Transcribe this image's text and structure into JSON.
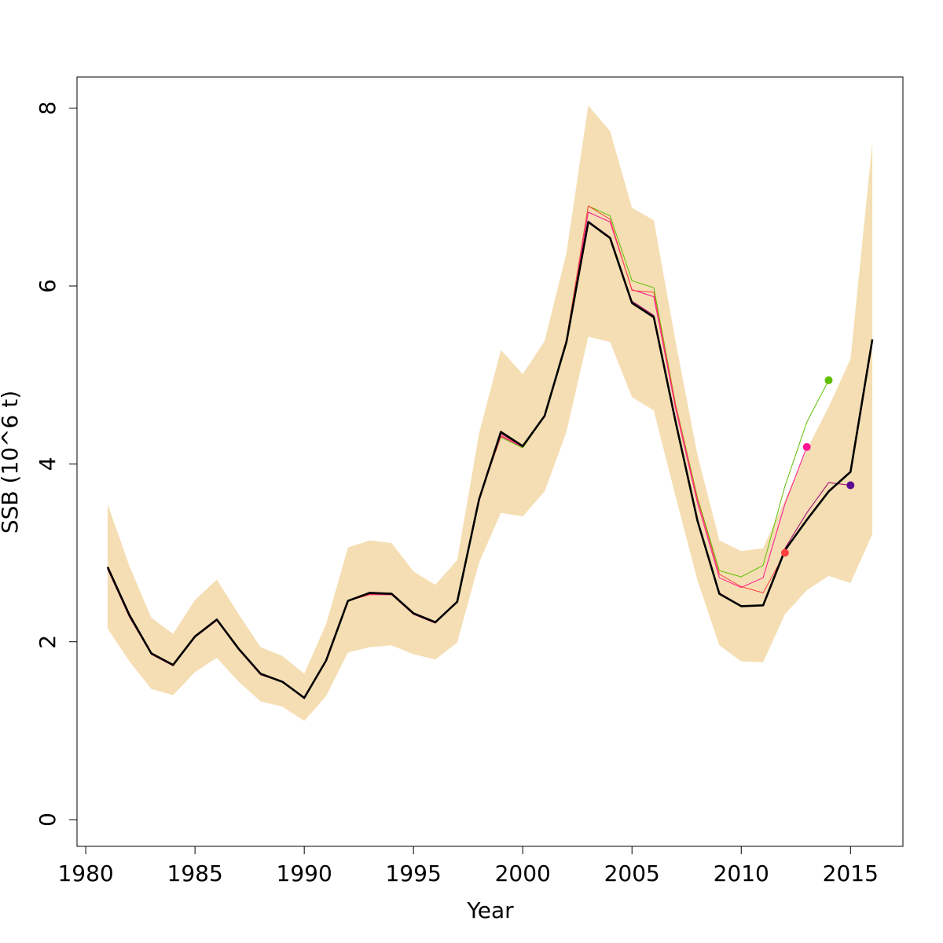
{
  "chart_data": {
    "type": "line",
    "title": "",
    "xlabel": "Year",
    "ylabel": "SSB (10^6 t)",
    "xlim": [
      1979.6,
      2017.4
    ],
    "ylim": [
      -0.3,
      8.35
    ],
    "xticks": [
      1980,
      1985,
      1990,
      1995,
      2000,
      2005,
      2010,
      2015
    ],
    "yticks": [
      0,
      2,
      4,
      6,
      8
    ],
    "grid": false,
    "legend": "none",
    "band": {
      "color": "#F5DEB3",
      "x": [
        1981,
        1982,
        1983,
        1984,
        1985,
        1986,
        1987,
        1988,
        1989,
        1990,
        1991,
        1992,
        1993,
        1994,
        1995,
        1996,
        1997,
        1998,
        1999,
        2000,
        2001,
        2002,
        2003,
        2004,
        2005,
        2006,
        2007,
        2008,
        2009,
        2010,
        2011,
        2012,
        2013,
        2014,
        2015,
        2016
      ],
      "lower": [
        2.15,
        1.78,
        1.47,
        1.4,
        1.66,
        1.82,
        1.55,
        1.33,
        1.27,
        1.11,
        1.39,
        1.88,
        1.94,
        1.96,
        1.86,
        1.8,
        1.99,
        2.89,
        3.45,
        3.41,
        3.69,
        4.36,
        5.43,
        5.37,
        4.75,
        4.6,
        3.63,
        2.69,
        1.96,
        1.78,
        1.77,
        2.31,
        2.58,
        2.74,
        2.66,
        3.21
      ],
      "upper": [
        3.55,
        2.85,
        2.27,
        2.09,
        2.47,
        2.7,
        2.31,
        1.94,
        1.84,
        1.64,
        2.2,
        3.06,
        3.14,
        3.11,
        2.79,
        2.64,
        2.92,
        4.34,
        5.28,
        5.01,
        5.38,
        6.37,
        8.03,
        7.74,
        6.88,
        6.74,
        5.37,
        4.1,
        3.14,
        3.02,
        3.05,
        3.6,
        4.16,
        4.64,
        5.18,
        7.61
      ]
    },
    "series": [
      {
        "color": "#5FBF00",
        "width": 1,
        "x": [
          1981,
          1982,
          1983,
          1984,
          1985,
          1986,
          1987,
          1988,
          1989,
          1990,
          1991,
          1992,
          1993,
          1994,
          1995,
          1996,
          1997,
          1998,
          1999,
          2000,
          2001,
          2002,
          2003,
          2004,
          2005,
          2006,
          2007,
          2008,
          2009,
          2010,
          2011,
          2012,
          2013,
          2014
        ],
        "values": [
          2.82,
          2.28,
          1.86,
          1.73,
          2.05,
          2.24,
          1.91,
          1.63,
          1.55,
          1.36,
          1.79,
          2.46,
          2.54,
          2.53,
          2.31,
          2.21,
          2.45,
          3.62,
          4.3,
          4.18,
          4.53,
          5.4,
          6.9,
          6.79,
          6.06,
          5.98,
          4.67,
          3.62,
          2.8,
          2.73,
          2.86,
          3.75,
          4.47,
          4.94
        ],
        "end_marker": true
      },
      {
        "color": "#FF1493",
        "width": 1,
        "x": [
          1981,
          1982,
          1983,
          1984,
          1985,
          1986,
          1987,
          1988,
          1989,
          1990,
          1991,
          1992,
          1993,
          1994,
          1995,
          1996,
          1997,
          1998,
          1999,
          2000,
          2001,
          2002,
          2003,
          2004,
          2005,
          2006,
          2007,
          2008,
          2009,
          2010,
          2011,
          2012,
          2013
        ],
        "values": [
          2.82,
          2.28,
          1.86,
          1.73,
          2.05,
          2.24,
          1.91,
          1.63,
          1.55,
          1.36,
          1.79,
          2.46,
          2.53,
          2.53,
          2.31,
          2.21,
          2.45,
          3.61,
          4.31,
          4.19,
          4.53,
          5.39,
          6.83,
          6.72,
          5.96,
          5.88,
          4.62,
          3.56,
          2.72,
          2.61,
          2.72,
          3.55,
          4.19
        ],
        "end_marker": true
      },
      {
        "color": "#FF4040",
        "width": 1,
        "x": [
          1981,
          1982,
          1983,
          1984,
          1985,
          1986,
          1987,
          1988,
          1989,
          1990,
          1991,
          1992,
          1993,
          1994,
          1995,
          1996,
          1997,
          1998,
          1999,
          2000,
          2001,
          2002,
          2003,
          2004,
          2005,
          2006,
          2007,
          2008,
          2009,
          2010,
          2011,
          2012
        ],
        "values": [
          2.82,
          2.28,
          1.86,
          1.73,
          2.05,
          2.24,
          1.91,
          1.63,
          1.55,
          1.36,
          1.79,
          2.46,
          2.53,
          2.53,
          2.31,
          2.21,
          2.45,
          3.61,
          4.32,
          4.2,
          4.54,
          5.4,
          6.9,
          6.75,
          5.95,
          5.93,
          4.66,
          3.6,
          2.76,
          2.62,
          2.55,
          3.0
        ],
        "end_marker": true
      },
      {
        "color": "#A0006E",
        "width": 1,
        "x": [
          1981,
          1982,
          1983,
          1984,
          1985,
          1986,
          1987,
          1988,
          1989,
          1990,
          1991,
          1992,
          1993,
          1994,
          1995,
          1996,
          1997,
          1998,
          1999,
          2000,
          2001,
          2002,
          2003,
          2004,
          2005,
          2006,
          2007,
          2008,
          2009,
          2010,
          2011,
          2012,
          2013,
          2014,
          2015
        ],
        "values": [
          2.82,
          2.28,
          1.86,
          1.73,
          2.05,
          2.24,
          1.91,
          1.63,
          1.55,
          1.36,
          1.79,
          2.46,
          2.54,
          2.53,
          2.31,
          2.21,
          2.45,
          3.6,
          4.34,
          4.2,
          4.54,
          5.38,
          6.73,
          6.55,
          5.83,
          5.67,
          4.48,
          3.37,
          2.55,
          2.4,
          2.41,
          3.05,
          3.45,
          3.79,
          3.76
        ],
        "end_marker": false
      },
      {
        "color": "#5B0A91",
        "width": 1,
        "x": [
          2015
        ],
        "values": [
          3.76
        ],
        "end_marker": true
      },
      {
        "color": "#000000",
        "width": 2.6,
        "x": [
          1981,
          1982,
          1983,
          1984,
          1985,
          1986,
          1987,
          1988,
          1989,
          1990,
          1991,
          1992,
          1993,
          1994,
          1995,
          1996,
          1997,
          1998,
          1999,
          2000,
          2001,
          2002,
          2003,
          2004,
          2005,
          2006,
          2007,
          2008,
          2009,
          2010,
          2011,
          2012,
          2013,
          2014,
          2015,
          2016
        ],
        "values": [
          2.84,
          2.3,
          1.87,
          1.74,
          2.06,
          2.25,
          1.92,
          1.64,
          1.55,
          1.37,
          1.79,
          2.46,
          2.55,
          2.54,
          2.32,
          2.22,
          2.45,
          3.6,
          4.36,
          4.2,
          4.54,
          5.37,
          6.72,
          6.54,
          5.81,
          5.65,
          4.47,
          3.36,
          2.54,
          2.4,
          2.41,
          3.03,
          3.37,
          3.69,
          3.91,
          5.4
        ],
        "end_marker": false
      }
    ]
  }
}
